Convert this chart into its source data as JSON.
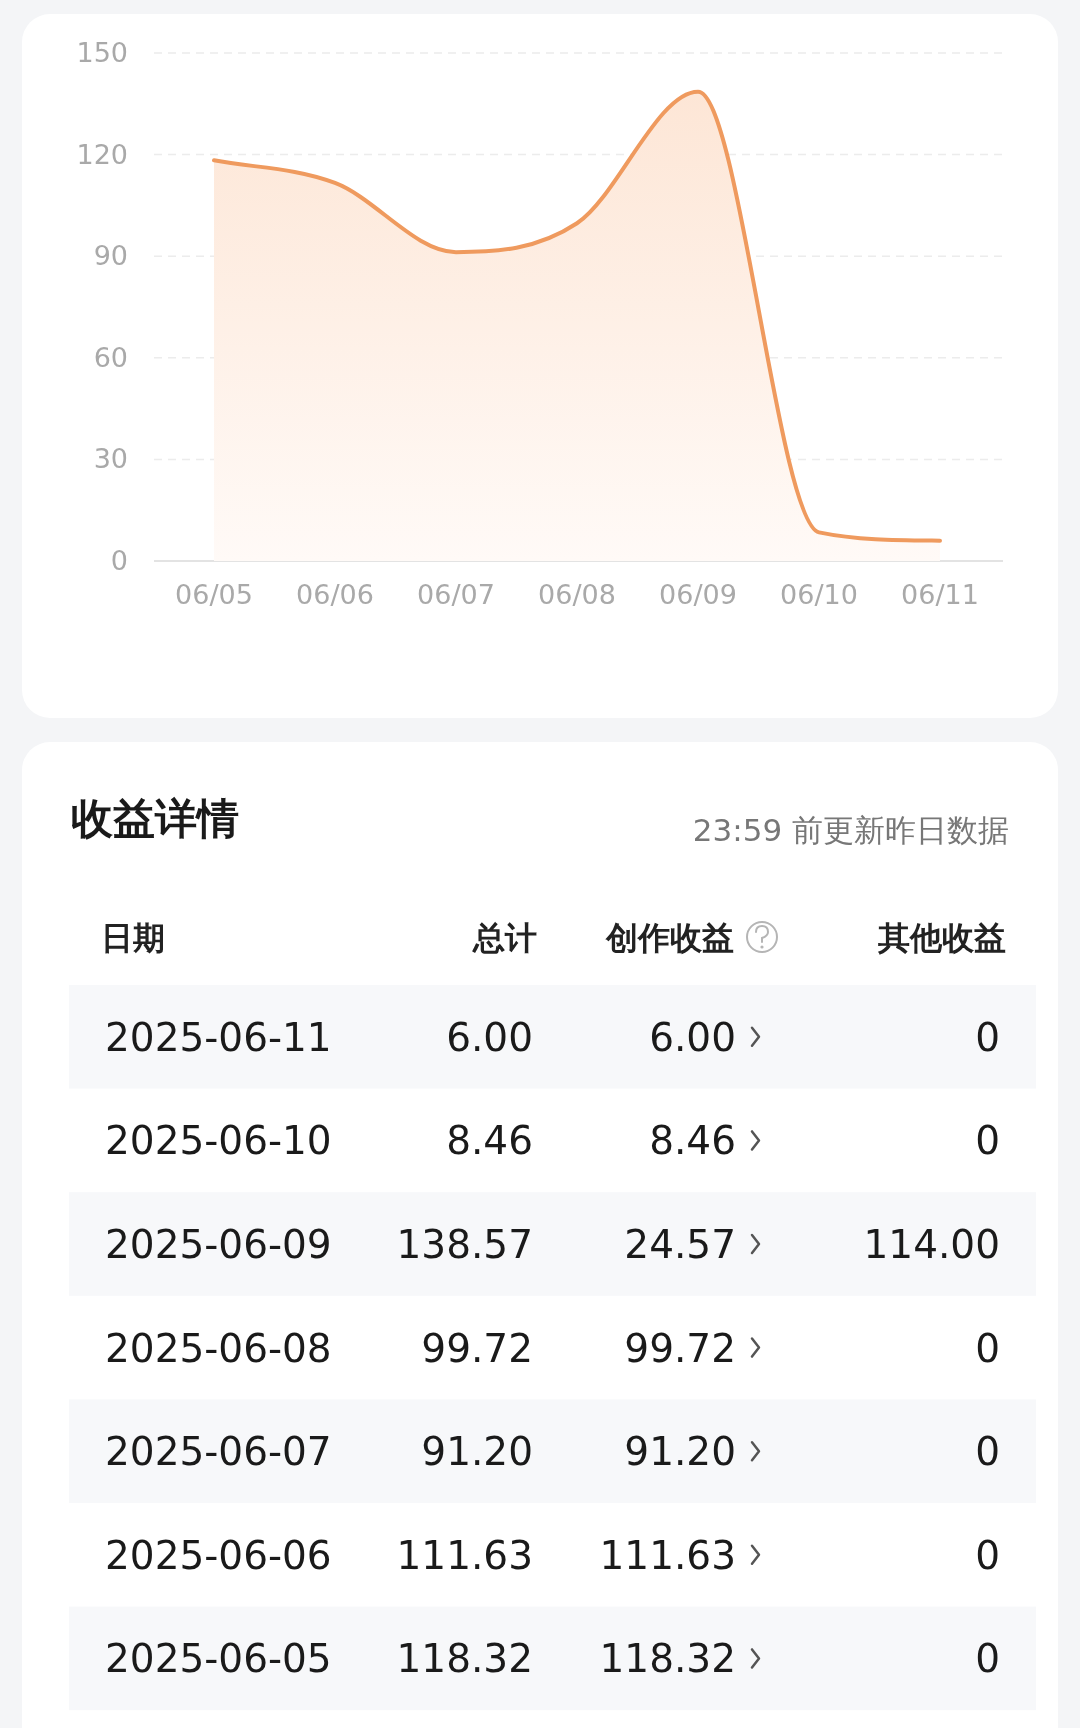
{
  "chart_data": [
    {
      "type": "area",
      "categories": [
        "06/05",
        "06/06",
        "06/07",
        "06/08",
        "06/09",
        "06/10",
        "06/11"
      ],
      "values": [
        118.32,
        111.63,
        91.2,
        99.72,
        138.57,
        8.46,
        6.0
      ],
      "color": "#ef9a5e",
      "ylim": [
        0,
        150
      ],
      "yticks": [
        0,
        30,
        60,
        90,
        120,
        150
      ],
      "grid": "y"
    },
    {
      "type": "other",
      "title": "收益详情",
      "annotations": [
        "23:59 前更新昨日数据",
        "日期",
        "总计",
        "创作收益",
        "其他收益",
        "2025-06-11",
        "6.00",
        "6.00",
        "0",
        "2025-06-10",
        "8.46",
        "8.46",
        "0",
        "2025-06-09",
        "138.57",
        "24.57",
        "114.00",
        "2025-06-08",
        "99.72",
        "99.72",
        "0",
        "2025-06-07",
        "91.20",
        "91.20",
        "0",
        "2025-06-06",
        "111.63",
        "111.63",
        "0",
        "2025-06-05",
        "118.32",
        "118.32",
        "0"
      ]
    }
  ]
}
